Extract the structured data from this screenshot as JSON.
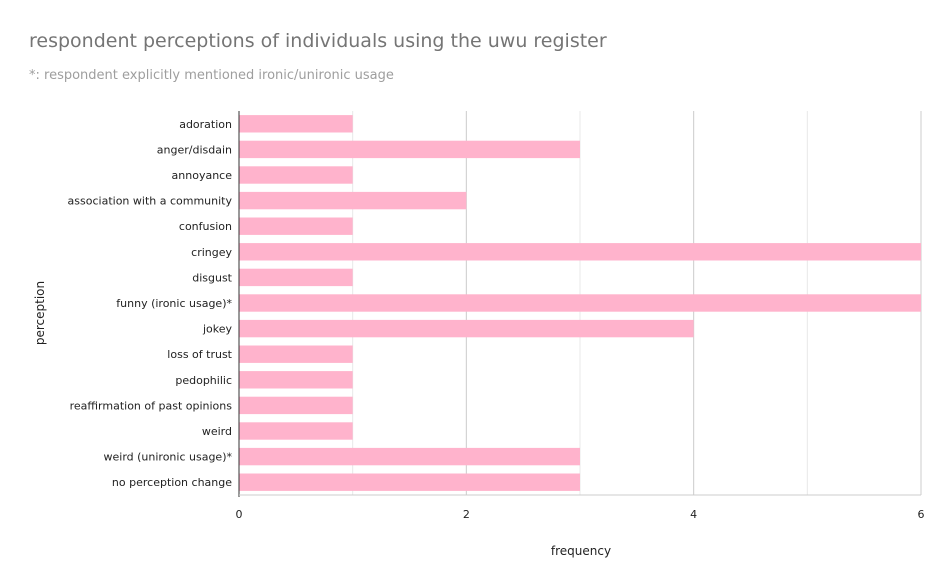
{
  "chart_data": {
    "type": "bar",
    "orientation": "horizontal",
    "title": "respondent perceptions of individuals using the uwu register",
    "subtitle": "*: respondent explicitly mentioned ironic/unironic usage",
    "xlabel": "frequency",
    "ylabel": "perception",
    "categories": [
      "adoration",
      "anger/disdain",
      "annoyance",
      "association with a community",
      "confusion",
      "cringey",
      "disgust",
      "funny (ironic usage)*",
      "jokey",
      "loss of trust",
      "pedophilic",
      "reaffirmation of past opinions",
      "weird",
      "weird (unironic usage)*",
      "no perception change"
    ],
    "values": [
      1,
      3,
      1,
      2,
      1,
      6,
      1,
      6,
      4,
      1,
      1,
      1,
      1,
      3,
      3
    ],
    "xlim": [
      0,
      6
    ],
    "xticks": [
      "0",
      "2",
      "4",
      "6"
    ],
    "grid": true,
    "legend": "none",
    "colors": {
      "bar": "#ffb3cc",
      "grid_major": "#cccccc",
      "grid_minor": "#e8e8e8",
      "axis": "#333333",
      "title": "#757575",
      "subtitle": "#9e9e9e",
      "text": "#222222"
    }
  }
}
